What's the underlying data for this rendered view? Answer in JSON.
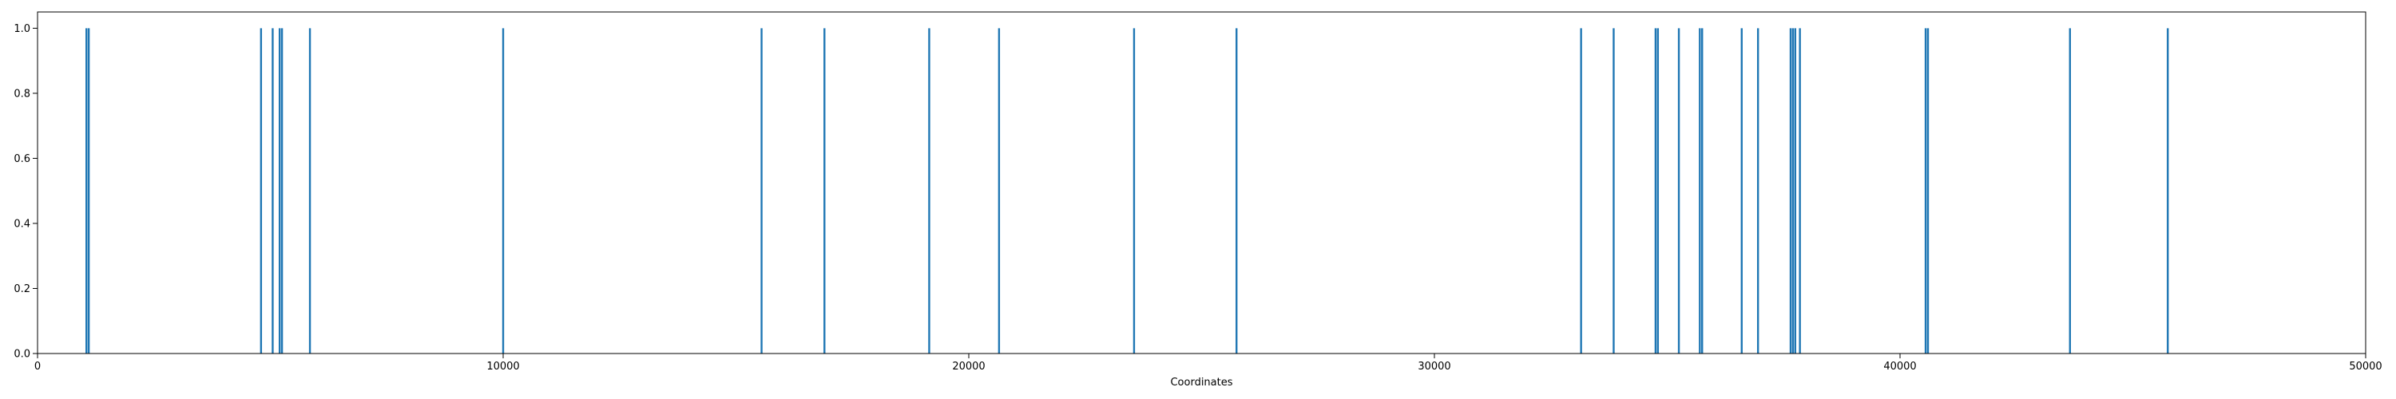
{
  "chart_data": {
    "type": "bar",
    "title": "",
    "xlabel": "Coordinates",
    "ylabel": "",
    "xlim": [
      0,
      50000
    ],
    "ylim": [
      0,
      1.05
    ],
    "grid": false,
    "x_ticks": [
      0,
      10000,
      20000,
      30000,
      40000,
      50000
    ],
    "y_ticks": [
      0.0,
      0.2,
      0.4,
      0.6,
      0.8,
      1.0
    ],
    "x_tick_labels": [
      "0",
      "10000",
      "20000",
      "30000",
      "40000",
      "50000"
    ],
    "y_tick_labels": [
      "0.0",
      "0.2",
      "0.4",
      "0.6",
      "0.8",
      "1.0"
    ],
    "series": [
      {
        "color": "#1f77b4",
        "x": [
          1050,
          1100,
          4800,
          5050,
          5200,
          5250,
          5850,
          10000,
          15550,
          16900,
          19150,
          20650,
          23550,
          25750,
          33150,
          33850,
          34750,
          34800,
          35250,
          35700,
          35750,
          36600,
          36950,
          37650,
          37700,
          37750,
          37850,
          40550,
          40600,
          43650,
          45750
        ],
        "values": [
          1,
          1,
          1,
          1,
          1,
          1,
          1,
          1,
          1,
          1,
          1,
          1,
          1,
          1,
          1,
          1,
          1,
          1,
          1,
          1,
          1,
          1,
          1,
          1,
          1,
          1,
          1,
          1,
          1,
          1,
          1
        ]
      }
    ]
  }
}
